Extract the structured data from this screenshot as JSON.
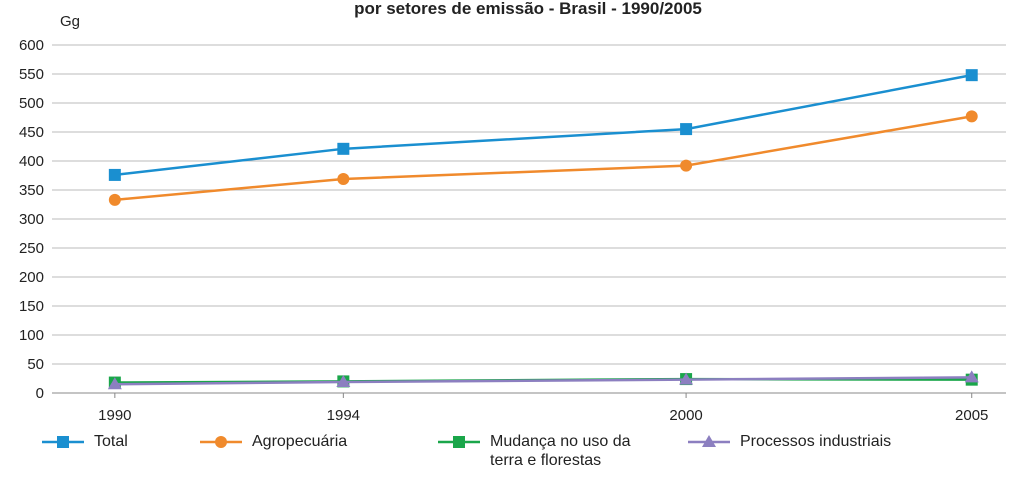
{
  "chart_data": {
    "type": "line",
    "title": "por setores de emissão - Brasil - 1990/2005",
    "y_label": "Gg",
    "x": [
      1990,
      1994,
      2000,
      2005
    ],
    "xlim": [
      1988.9,
      2005.6
    ],
    "ylim": [
      0,
      600
    ],
    "yticks": [
      0,
      50,
      100,
      150,
      200,
      250,
      300,
      350,
      400,
      450,
      500,
      550,
      600
    ],
    "grid": true,
    "legend": "bottom",
    "series": [
      {
        "name": "Total",
        "color": "#1a8fd0",
        "marker": "square",
        "values": [
          376,
          421,
          455,
          548
        ]
      },
      {
        "name": "Agropecuária",
        "color": "#f08a2c",
        "marker": "circle",
        "values": [
          333,
          369,
          392,
          477
        ]
      },
      {
        "name": "Mudança no uso da terra e florestas",
        "color": "#1aa64a",
        "marker": "square",
        "values": [
          18,
          20,
          24,
          23
        ]
      },
      {
        "name": "Processos industriais",
        "color": "#8c7fc0",
        "marker": "triangle",
        "values": [
          15,
          19,
          23,
          27
        ]
      }
    ]
  }
}
